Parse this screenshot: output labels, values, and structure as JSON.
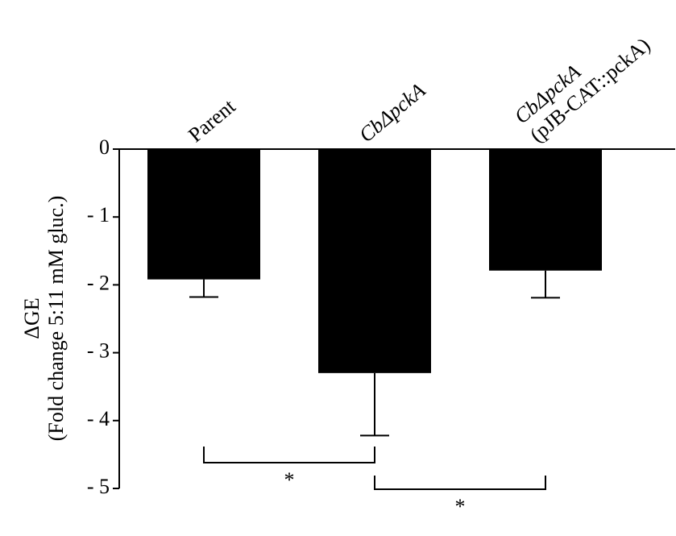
{
  "chart_data": {
    "type": "bar",
    "categories": [
      "Parent",
      "CbΔpckA",
      "CbΔpckA (pJB-CAT::pckA)"
    ],
    "values": [
      -1.92,
      -3.3,
      -1.79
    ],
    "errors": [
      0.26,
      0.92,
      0.4
    ],
    "color": "#000000",
    "ylabel": [
      "ΔGE",
      "(Fold change 5:11 mM gluc.)"
    ],
    "ylim": [
      -5,
      0
    ],
    "yticks": [
      0,
      {
        "value": -1,
        "label": "- 1"
      },
      {
        "value": -2,
        "label": "- 2"
      },
      {
        "value": -3,
        "label": "- 3"
      },
      {
        "value": -4,
        "label": "- 4"
      },
      {
        "value": -5,
        "label": "- 5"
      }
    ],
    "significance": [
      {
        "from": 0,
        "to": 1,
        "label": "*"
      },
      {
        "from": 1,
        "to": 2,
        "label": "*"
      }
    ]
  }
}
